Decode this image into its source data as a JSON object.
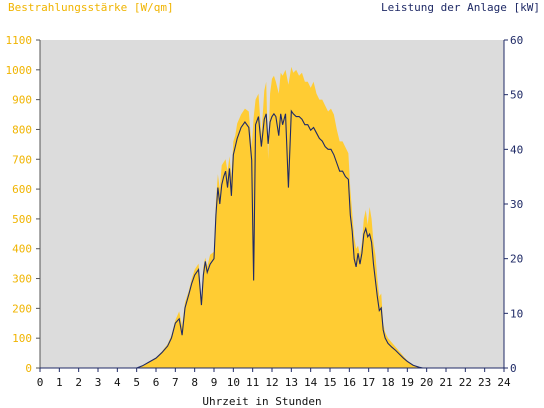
{
  "chart_data": {
    "type": "area",
    "title_left": "Bestrahlungsstärke [W/qm]",
    "title_right": "Leistung der Anlage [kW]",
    "xlabel": "Uhrzeit in Stunden",
    "xlim": [
      0,
      24
    ],
    "x_ticks": [
      "0",
      "1",
      "2",
      "3",
      "4",
      "5",
      "6",
      "7",
      "8",
      "9",
      "10",
      "11",
      "12",
      "13",
      "14",
      "15",
      "16",
      "17",
      "18",
      "19",
      "20",
      "21",
      "22",
      "23",
      "24"
    ],
    "y_left": {
      "min": 0,
      "max": 1100,
      "ticks": [
        "0",
        "100",
        "200",
        "300",
        "400",
        "500",
        "600",
        "700",
        "800",
        "900",
        "1000",
        "1100"
      ]
    },
    "y_right": {
      "min": 0,
      "max": 60,
      "ticks": [
        "0",
        "10",
        "20",
        "30",
        "40",
        "50",
        "60"
      ]
    },
    "grid": false,
    "colors": {
      "irradiance_fill": "#ffcc33",
      "power_line": "#1f2a66",
      "left_axis_text": "#f0b400",
      "right_axis_text": "#1f2a66",
      "plot_background": "#dcdcdc"
    },
    "series": [
      {
        "axis": "left",
        "style": "area",
        "x": [
          0,
          5.0,
          5.3,
          5.6,
          6.0,
          6.3,
          6.6,
          6.8,
          7.0,
          7.2,
          7.35,
          7.5,
          7.7,
          7.85,
          8.0,
          8.2,
          8.35,
          8.45,
          8.55,
          8.65,
          8.8,
          9.0,
          9.1,
          9.2,
          9.3,
          9.4,
          9.5,
          9.6,
          9.7,
          9.8,
          9.9,
          10.0,
          10.1,
          10.2,
          10.4,
          10.6,
          10.8,
          10.95,
          11.05,
          11.15,
          11.3,
          11.45,
          11.6,
          11.7,
          11.8,
          11.9,
          12.0,
          12.1,
          12.2,
          12.35,
          12.45,
          12.55,
          12.7,
          12.85,
          13.0,
          13.1,
          13.25,
          13.4,
          13.55,
          13.7,
          13.85,
          14.0,
          14.15,
          14.3,
          14.45,
          14.6,
          14.75,
          14.9,
          15.05,
          15.2,
          15.35,
          15.5,
          15.65,
          15.8,
          15.95,
          16.05,
          16.15,
          16.25,
          16.35,
          16.45,
          16.55,
          16.65,
          16.75,
          16.85,
          16.95,
          17.05,
          17.15,
          17.25,
          17.35,
          17.45,
          17.55,
          17.65,
          17.75,
          17.85,
          18.0,
          18.2,
          18.4,
          18.6,
          18.8,
          19.0,
          19.3,
          19.6,
          19.8,
          20.0,
          20.2,
          24
        ],
        "values": [
          0,
          0,
          8,
          20,
          35,
          55,
          80,
          110,
          160,
          190,
          140,
          220,
          260,
          300,
          330,
          350,
          230,
          340,
          370,
          340,
          380,
          390,
          560,
          650,
          600,
          680,
          690,
          700,
          660,
          710,
          640,
          760,
          780,
          820,
          850,
          870,
          860,
          740,
          840,
          900,
          920,
          780,
          930,
          960,
          700,
          920,
          970,
          980,
          960,
          920,
          990,
          980,
          1000,
          950,
          1010,
          990,
          1000,
          980,
          990,
          960,
          960,
          940,
          960,
          920,
          900,
          900,
          880,
          860,
          870,
          850,
          800,
          760,
          760,
          740,
          720,
          600,
          520,
          440,
          400,
          410,
          380,
          420,
          500,
          530,
          480,
          540,
          500,
          420,
          380,
          300,
          240,
          250,
          150,
          120,
          100,
          85,
          70,
          55,
          40,
          25,
          10,
          3,
          1,
          0,
          0,
          0
        ]
      },
      {
        "axis": "right",
        "style": "line",
        "x": [
          0,
          5.0,
          5.3,
          5.6,
          6.0,
          6.3,
          6.6,
          6.8,
          7.0,
          7.2,
          7.35,
          7.5,
          7.7,
          7.85,
          8.0,
          8.2,
          8.35,
          8.45,
          8.55,
          8.65,
          8.8,
          9.0,
          9.1,
          9.2,
          9.3,
          9.4,
          9.5,
          9.6,
          9.7,
          9.8,
          9.9,
          10.0,
          10.1,
          10.2,
          10.4,
          10.6,
          10.8,
          10.95,
          11.05,
          11.15,
          11.3,
          11.45,
          11.6,
          11.7,
          11.8,
          11.9,
          12.0,
          12.1,
          12.2,
          12.35,
          12.45,
          12.55,
          12.7,
          12.85,
          13.0,
          13.1,
          13.25,
          13.4,
          13.55,
          13.7,
          13.85,
          14.0,
          14.15,
          14.3,
          14.45,
          14.6,
          14.75,
          14.9,
          15.05,
          15.2,
          15.35,
          15.5,
          15.65,
          15.8,
          15.95,
          16.05,
          16.15,
          16.25,
          16.35,
          16.45,
          16.55,
          16.65,
          16.75,
          16.85,
          16.95,
          17.05,
          17.15,
          17.25,
          17.35,
          17.45,
          17.55,
          17.65,
          17.75,
          17.85,
          18.0,
          18.2,
          18.4,
          18.6,
          18.8,
          19.0,
          19.3,
          19.6,
          19.8,
          20.0,
          20.2,
          24
        ],
        "values": [
          0,
          0,
          0.4,
          1.0,
          1.8,
          2.8,
          4.0,
          5.5,
          8.2,
          9.0,
          6.0,
          11.0,
          13.5,
          15.5,
          17.0,
          18.0,
          11.5,
          17.0,
          19.5,
          17.5,
          19.0,
          20.0,
          28.0,
          33.0,
          30.0,
          33.5,
          35.0,
          36.0,
          33.0,
          36.5,
          31.5,
          39.0,
          40.5,
          42.0,
          44.0,
          45.0,
          44.0,
          38.0,
          16.0,
          44.5,
          46.0,
          40.5,
          45.5,
          46.5,
          41.0,
          45.0,
          46.0,
          46.5,
          46.0,
          42.5,
          46.5,
          44.5,
          46.5,
          33.0,
          47.0,
          46.5,
          46.0,
          46.0,
          45.5,
          44.5,
          44.5,
          43.5,
          44.0,
          43.0,
          42.0,
          41.5,
          40.5,
          40.0,
          40.0,
          39.0,
          37.5,
          36.0,
          36.0,
          35.0,
          34.5,
          28.0,
          25.0,
          20.0,
          18.5,
          21.0,
          19.0,
          21.0,
          24.5,
          25.5,
          24.0,
          24.5,
          23.0,
          19.0,
          16.0,
          13.0,
          10.5,
          11.0,
          7.0,
          5.5,
          4.5,
          3.8,
          3.2,
          2.5,
          1.8,
          1.2,
          0.5,
          0.15,
          0,
          0,
          0,
          0
        ]
      }
    ]
  }
}
